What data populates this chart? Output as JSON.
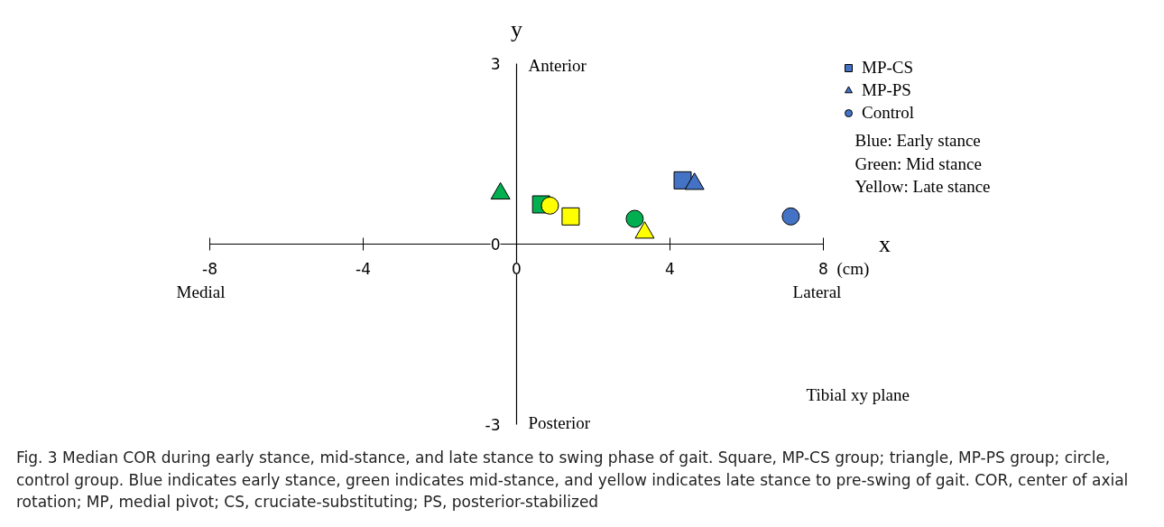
{
  "chart_data": {
    "type": "scatter",
    "xlabel": "x",
    "ylabel": "y",
    "xlim": [
      -8,
      8
    ],
    "ylim": [
      -3,
      3
    ],
    "xticks": [
      -8,
      -4,
      0,
      4,
      8
    ],
    "yticks": [
      -3,
      0,
      3
    ],
    "grid": false,
    "legend": "top right",
    "series": [
      {
        "name": "MP-CS",
        "marker": "square",
        "x": [
          4.33,
          0.64,
          1.41
        ],
        "values": [
          1.06,
          0.66,
          0.46
        ],
        "colors": [
          "#4472c4",
          "#00b050",
          "#ffff00"
        ]
      },
      {
        "name": "MP-PS",
        "marker": "triangle",
        "x": [
          4.64,
          -0.42,
          3.34
        ],
        "values": [
          1.0,
          0.84,
          0.19
        ],
        "colors": [
          "#4472c4",
          "#00b050",
          "#ffff00"
        ]
      },
      {
        "name": "Control",
        "marker": "circle",
        "x": [
          7.15,
          3.08,
          0.87
        ],
        "values": [
          0.46,
          0.42,
          0.64
        ],
        "colors": [
          "#4472c4",
          "#00b050",
          "#ffff00"
        ]
      }
    ],
    "annotations": [
      "Anterior",
      "Posterior",
      "Medial",
      "Lateral",
      "(cm)",
      "Tibial xy plane",
      "Blue: Early stance",
      "Green: Mid stance",
      "Yellow: Late stance",
      "Fig. 3 Median COR during early stance, mid-stance, and late stance to swing phase of gait. Square, MP-CS group; triangle, MP-PS group; circle, control group. Blue indicates early stance, green indicates mid-stance, and yellow indicates late stance to pre-swing of gait. COR, center of axial rotation; MP, medial pivot; CS, cruciate-substituting; PS, posterior-stabilized"
    ]
  }
}
